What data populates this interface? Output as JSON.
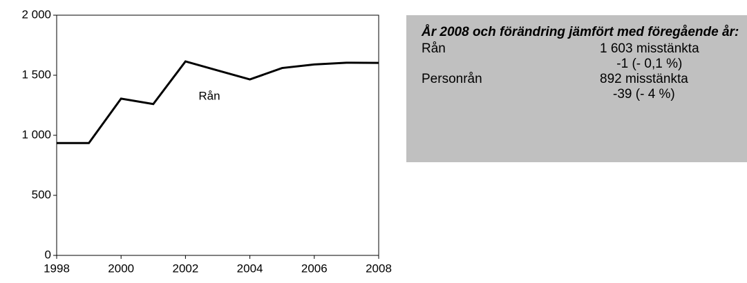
{
  "chart_data": {
    "type": "line",
    "x": [
      1998,
      1999,
      2000,
      2001,
      2002,
      2003,
      2004,
      2005,
      2006,
      2007,
      2008
    ],
    "series": [
      {
        "name": "Rån",
        "color": "#000000",
        "values": [
          935,
          935,
          1305,
          1260,
          1615,
          1540,
          1465,
          1560,
          1590,
          1604,
          1603
        ]
      }
    ],
    "xlim": [
      1998,
      2008
    ],
    "xticks": [
      1998,
      2000,
      2002,
      2004,
      2006,
      2008
    ],
    "ylim": [
      0,
      2000
    ],
    "yticks": [
      0,
      500,
      {
        "value": 1000,
        "label": "1 000"
      },
      {
        "value": 1500,
        "label": "1 500"
      },
      {
        "value": 2000,
        "label": "2 000"
      }
    ],
    "grid": false
  },
  "info_box": {
    "title": "År 2008 och förändring jämfört med föregående år:",
    "rows": [
      {
        "name": "Rån",
        "count": "1 603 misstänkta",
        "change": "-1 (- 0,1 %)"
      },
      {
        "name": "Personrån",
        "count": "892 misstänkta",
        "change": "-39 (- 4 %)"
      }
    ]
  }
}
